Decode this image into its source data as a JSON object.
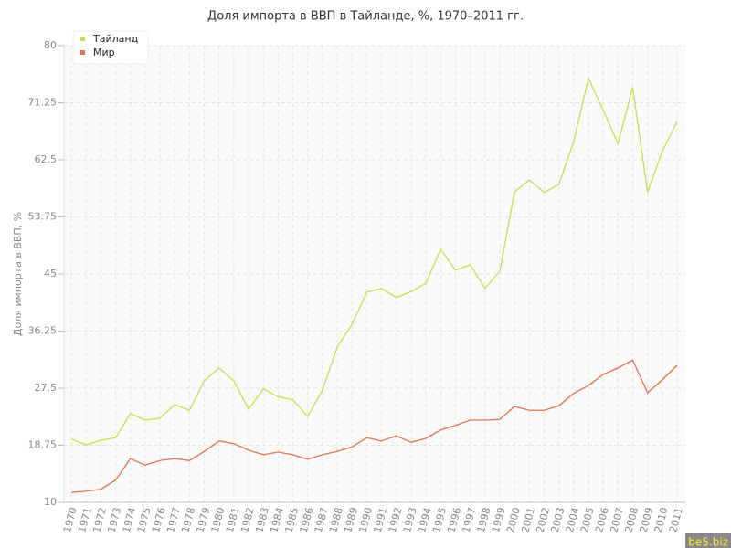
{
  "chart_data": {
    "type": "line",
    "title": "Доля импорта в ВВП в Тайланде, %, 1970–2011 гг.",
    "y_label": "Доля импорта в ВВП, %",
    "categories": [
      "1970",
      "1971",
      "1972",
      "1973",
      "1974",
      "1975",
      "1976",
      "1977",
      "1978",
      "1979",
      "1980",
      "1981",
      "1982",
      "1983",
      "1984",
      "1985",
      "1986",
      "1987",
      "1988",
      "1989",
      "1990",
      "1991",
      "1992",
      "1993",
      "1994",
      "1995",
      "1996",
      "1997",
      "1998",
      "1999",
      "2000",
      "2001",
      "2002",
      "2003",
      "2004",
      "2005",
      "2006",
      "2007",
      "2008",
      "2009",
      "2010",
      "2011"
    ],
    "series": [
      {
        "name": "Тайланд",
        "color": "#c5df4a",
        "values": [
          19.7,
          18.8,
          19.5,
          19.9,
          23.6,
          22.6,
          22.9,
          25.0,
          24.1,
          28.6,
          30.6,
          28.6,
          24.3,
          27.4,
          26.2,
          25.7,
          23.2,
          27.2,
          33.8,
          37.3,
          42.2,
          42.8,
          41.4,
          42.3,
          43.6,
          48.8,
          45.6,
          46.4,
          42.8,
          45.4,
          57.6,
          59.4,
          57.5,
          58.7,
          65.3,
          75.0,
          70.1,
          65.0,
          73.6,
          57.5,
          63.8,
          68.4
        ]
      },
      {
        "name": "Мир",
        "color": "#e0734a",
        "values": [
          11.5,
          11.7,
          12.0,
          13.4,
          16.7,
          15.7,
          16.4,
          16.7,
          16.4,
          17.8,
          19.4,
          19.0,
          18.0,
          17.3,
          17.7,
          17.3,
          16.6,
          17.3,
          17.8,
          18.5,
          19.9,
          19.4,
          20.2,
          19.2,
          19.8,
          21.1,
          21.8,
          22.6,
          22.6,
          22.7,
          24.7,
          24.1,
          24.1,
          24.8,
          26.7,
          27.9,
          29.6,
          30.6,
          31.8,
          26.8,
          28.8,
          31.0
        ]
      }
    ],
    "ylim": [
      10,
      80
    ],
    "yticks": [
      10,
      18.75,
      27.5,
      36.25,
      45,
      53.75,
      62.5,
      71.25,
      80
    ],
    "grid": true,
    "legend": "top-left",
    "watermark": "be5.biz"
  }
}
